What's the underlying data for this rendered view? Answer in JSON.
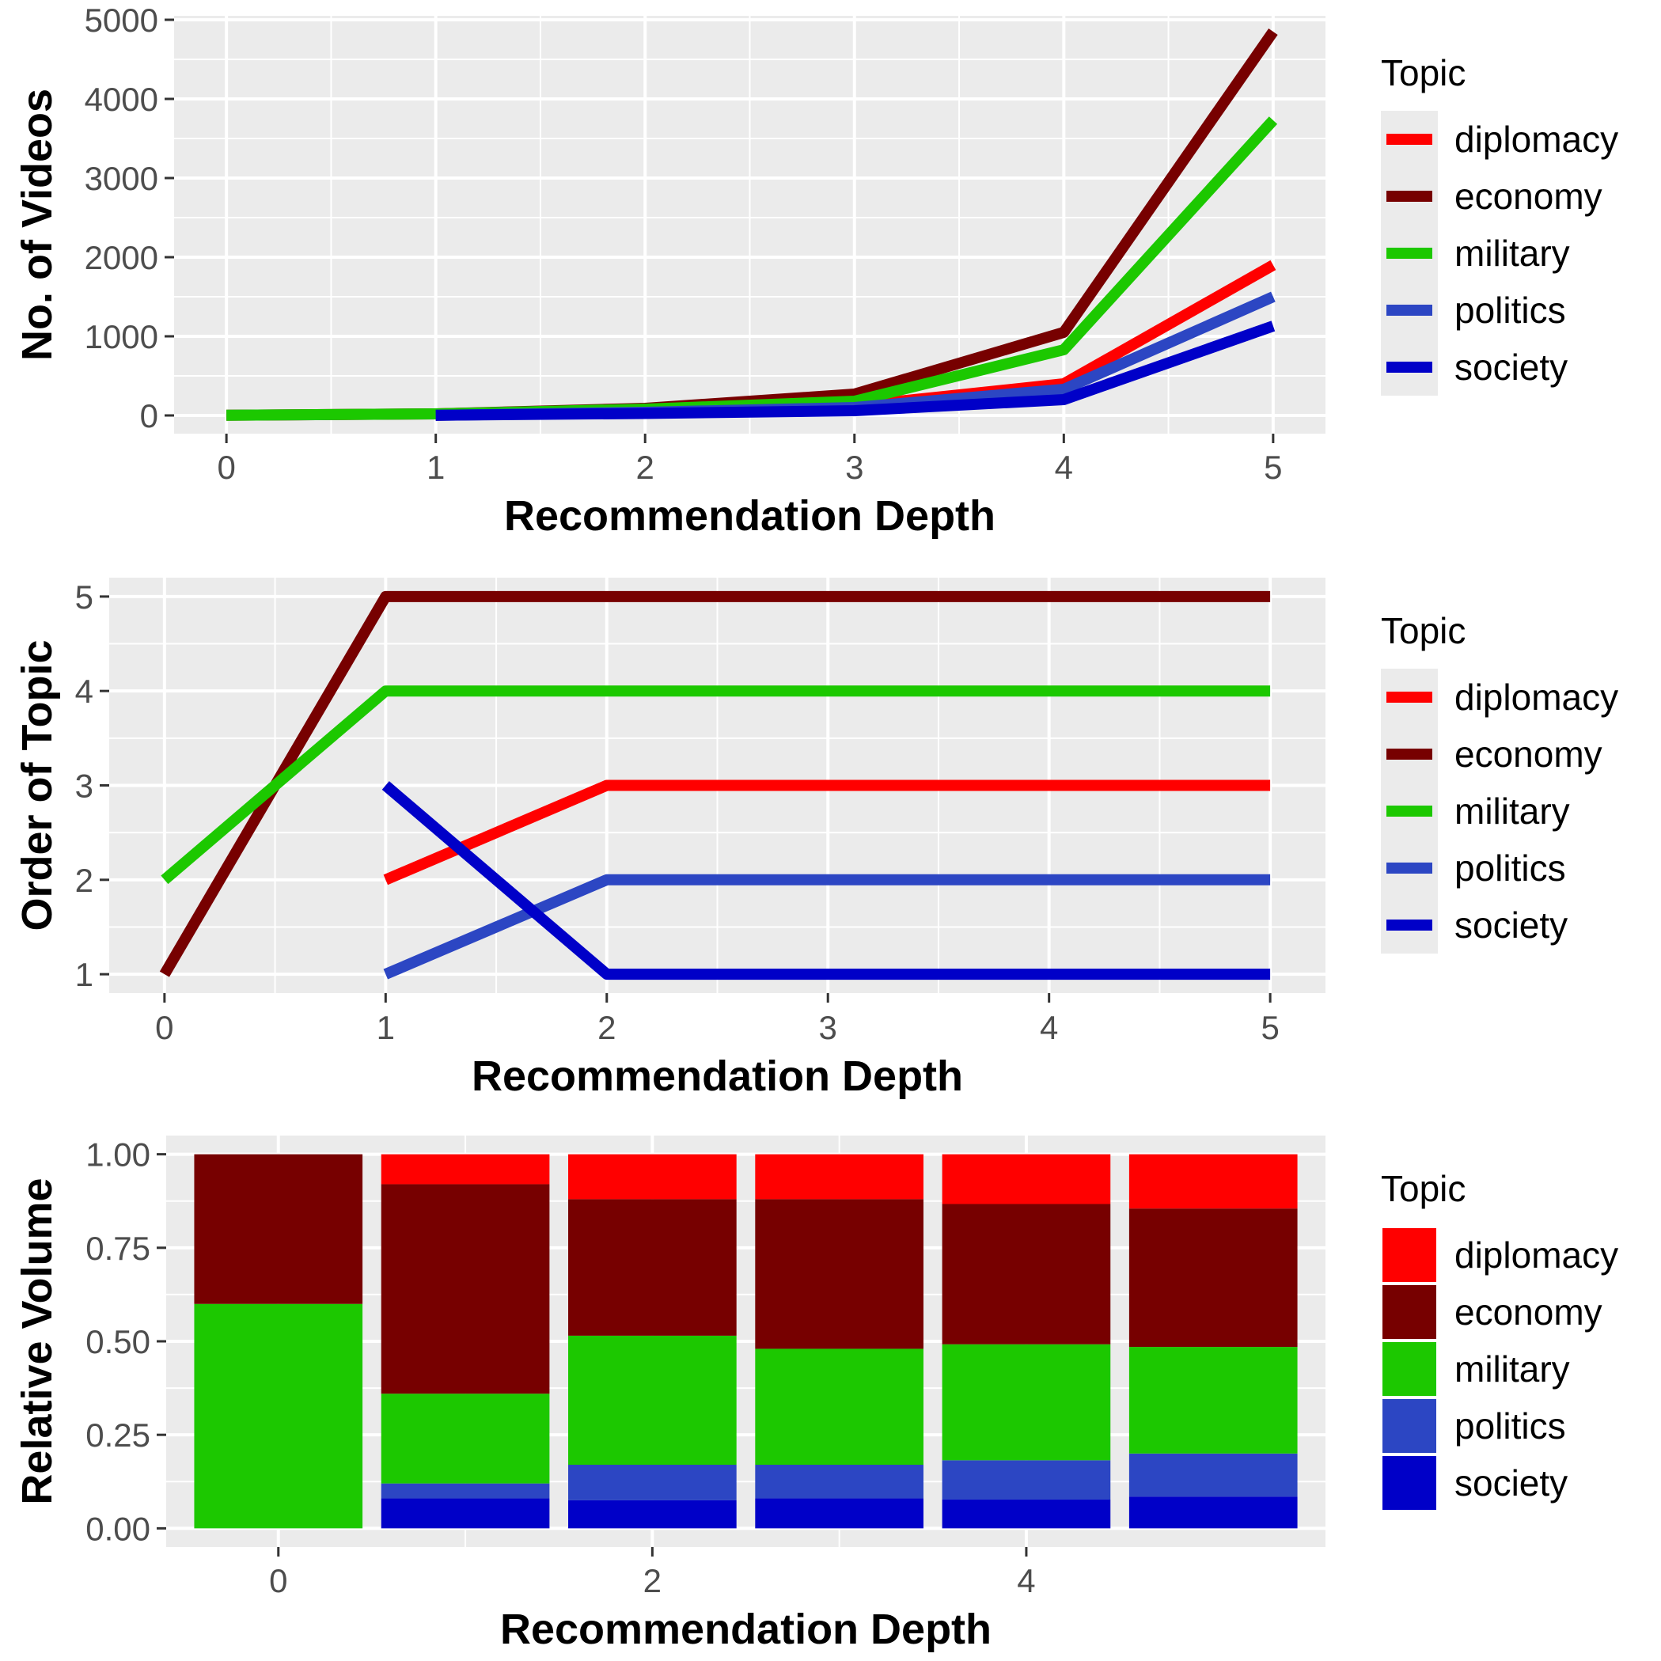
{
  "chart_data": [
    {
      "type": "line",
      "xlabel": "Recommendation Depth",
      "ylabel": "No. of Videos",
      "x": [
        0,
        1,
        2,
        3,
        4,
        5
      ],
      "x_ticks": [
        "0",
        "1",
        "2",
        "3",
        "4",
        "5"
      ],
      "y_ticks": [
        "0",
        "1000",
        "2000",
        "3000",
        "4000",
        "5000"
      ],
      "ylim": [
        -230,
        5050
      ],
      "xlim": [
        -0.25,
        5.25
      ],
      "grid": true,
      "legend_title": "Topic",
      "legend_position": "right",
      "series": [
        {
          "name": "diplomacy",
          "color": "#ff0000",
          "values": [
            null,
            2,
            50,
            120,
            400,
            1900
          ]
        },
        {
          "name": "economy",
          "color": "#770000",
          "values": [
            3,
            20,
            90,
            270,
            1050,
            4850
          ]
        },
        {
          "name": "military",
          "color": "#1cc800",
          "values": [
            3,
            20,
            80,
            180,
            830,
            3730
          ]
        },
        {
          "name": "politics",
          "color": "#2c46c3",
          "values": [
            null,
            1,
            40,
            100,
            330,
            1500
          ]
        },
        {
          "name": "society",
          "color": "#0000c8",
          "values": [
            null,
            3,
            25,
            60,
            200,
            1130
          ]
        }
      ]
    },
    {
      "type": "line",
      "xlabel": "Recommendation Depth",
      "ylabel": "Order of Topic",
      "x": [
        0,
        1,
        2,
        3,
        4,
        5
      ],
      "x_ticks": [
        "0",
        "1",
        "2",
        "3",
        "4",
        "5"
      ],
      "y_ticks": [
        "1",
        "2",
        "3",
        "4",
        "5"
      ],
      "ylim": [
        0.8,
        5.2
      ],
      "xlim": [
        -0.25,
        5.25
      ],
      "grid": true,
      "legend_title": "Topic",
      "legend_position": "right",
      "series": [
        {
          "name": "diplomacy",
          "color": "#ff0000",
          "values": [
            null,
            2,
            3,
            3,
            3,
            3
          ]
        },
        {
          "name": "economy",
          "color": "#770000",
          "values": [
            1,
            5,
            5,
            5,
            5,
            5
          ]
        },
        {
          "name": "military",
          "color": "#1cc800",
          "values": [
            2,
            4,
            4,
            4,
            4,
            4
          ]
        },
        {
          "name": "politics",
          "color": "#2c46c3",
          "values": [
            null,
            1,
            2,
            2,
            2,
            2
          ]
        },
        {
          "name": "society",
          "color": "#0000c8",
          "values": [
            null,
            3,
            1,
            1,
            1,
            1
          ]
        }
      ]
    },
    {
      "type": "bar",
      "stacked": true,
      "xlabel": "Recommendation Depth",
      "ylabel": "Relative Volume",
      "categories": [
        0,
        1,
        2,
        3,
        4,
        5
      ],
      "x_ticks": [
        "0",
        "2",
        "4"
      ],
      "x_tick_values": [
        0,
        2,
        4
      ],
      "y_ticks": [
        "0.00",
        "0.25",
        "0.50",
        "0.75",
        "1.00"
      ],
      "ylim": [
        -0.05,
        1.05
      ],
      "xlim": [
        -0.6,
        5.6
      ],
      "grid": true,
      "legend_title": "Topic",
      "legend_position": "right",
      "series": [
        {
          "name": "society",
          "color": "#0000c8",
          "values": [
            0,
            0.08,
            0.075,
            0.08,
            0.077,
            0.085
          ]
        },
        {
          "name": "politics",
          "color": "#2c46c3",
          "values": [
            0,
            0.04,
            0.095,
            0.09,
            0.105,
            0.115
          ]
        },
        {
          "name": "military",
          "color": "#1cc800",
          "values": [
            0.6,
            0.24,
            0.345,
            0.31,
            0.31,
            0.285
          ]
        },
        {
          "name": "economy",
          "color": "#770000",
          "values": [
            0.4,
            0.56,
            0.365,
            0.4,
            0.375,
            0.37
          ]
        },
        {
          "name": "diplomacy",
          "color": "#ff0000",
          "values": [
            0,
            0.08,
            0.12,
            0.12,
            0.133,
            0.145
          ]
        }
      ]
    }
  ]
}
